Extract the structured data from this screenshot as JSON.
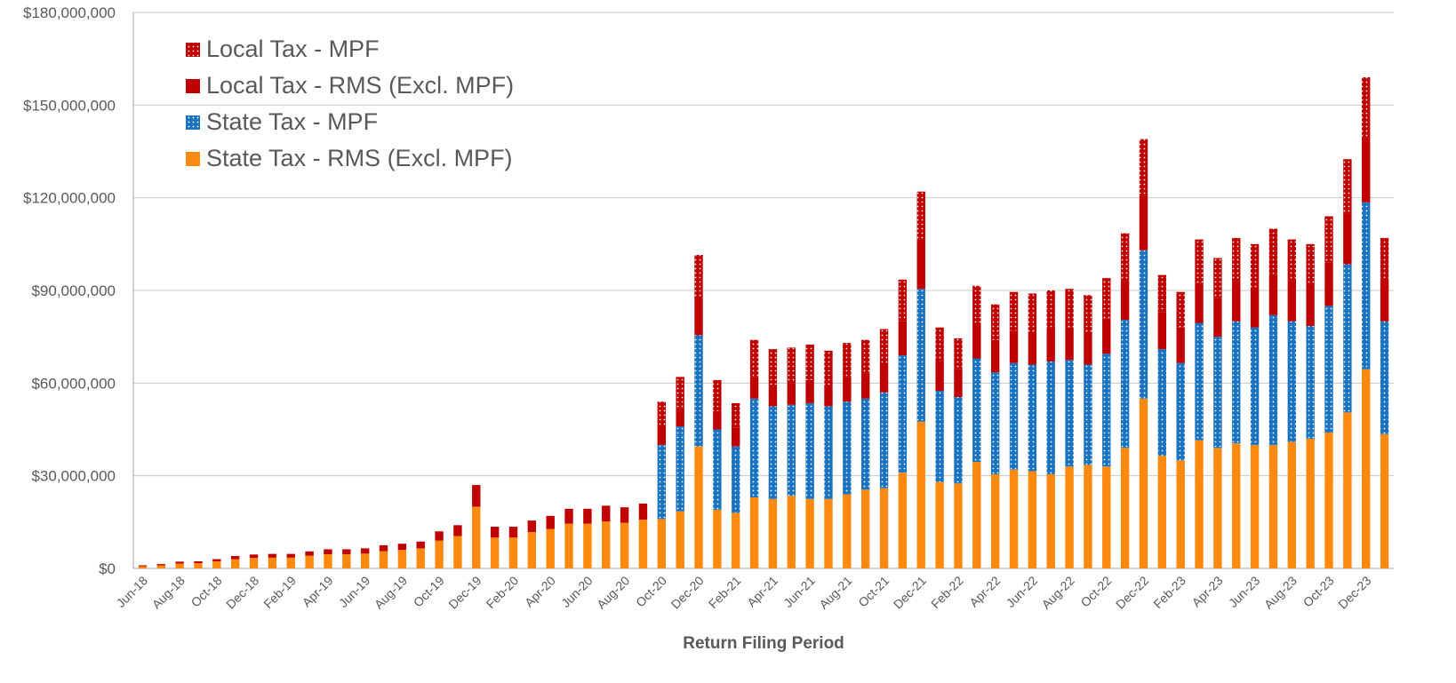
{
  "chart_data": {
    "type": "stacked_bar",
    "x_label": "Return Filing Period",
    "categories": [
      "Jun-18",
      null,
      "Aug-18",
      null,
      "Oct-18",
      null,
      "Dec-18",
      null,
      "Feb-19",
      null,
      "Apr-19",
      null,
      "Jun-19",
      null,
      "Aug-19",
      null,
      "Oct-19",
      null,
      "Dec-19",
      null,
      "Feb-20",
      null,
      "Apr-20",
      null,
      "Jun-20",
      null,
      "Aug-20",
      null,
      "Oct-20",
      null,
      "Dec-20",
      null,
      "Feb-21",
      null,
      "Apr-21",
      null,
      "Jun-21",
      null,
      "Aug-21",
      null,
      "Oct-21",
      null,
      "Dec-21",
      null,
      "Feb-22",
      null,
      "Apr-22",
      null,
      "Jun-22",
      null,
      "Aug-22",
      null,
      "Oct-22",
      null,
      "Dec-22",
      null,
      "Feb-23",
      null,
      "Apr-23",
      null,
      "Jun-23",
      null,
      "Aug-23",
      null,
      "Oct-23",
      null,
      "Dec-23",
      null
    ],
    "series": [
      {
        "name": "State Tax - RMS (Excl. MPF)",
        "color": "#fd8a0e",
        "values": [
          0.7,
          1.0,
          1.6,
          1.7,
          2.3,
          3.0,
          3.4,
          3.5,
          3.5,
          4.1,
          4.6,
          4.6,
          4.8,
          5.6,
          6.0,
          6.5,
          9.0,
          10.5,
          20,
          10,
          10,
          11.8,
          12.8,
          14.5,
          14.5,
          15.2,
          14.8,
          15.8,
          16,
          18.5,
          39.5,
          19,
          18,
          23,
          22.5,
          23.5,
          22.5,
          22.5,
          24,
          25.5,
          26,
          31,
          47.5,
          28,
          27.5,
          34.5,
          30.5,
          32,
          31.5,
          30.5,
          33,
          33.5,
          33,
          39,
          55,
          36.5,
          35,
          41.5,
          39,
          40.5,
          40,
          40,
          41,
          42,
          44,
          50.5,
          64.5,
          43.5
        ]
      },
      {
        "name": "State Tax - MPF",
        "color": "#1a73c1",
        "pattern": "dots",
        "values": [
          null,
          null,
          null,
          null,
          null,
          null,
          null,
          null,
          null,
          null,
          null,
          null,
          null,
          null,
          null,
          null,
          null,
          null,
          null,
          null,
          null,
          null,
          null,
          null,
          null,
          null,
          null,
          null,
          24,
          27.5,
          36,
          26,
          21.5,
          32,
          30,
          29.5,
          31,
          30,
          30,
          29.5,
          31,
          38,
          43,
          29.5,
          28,
          33.5,
          33,
          34.5,
          34.5,
          36.5,
          34.5,
          32.5,
          36.5,
          41.5,
          48,
          34.5,
          31.5,
          38,
          36,
          39.5,
          38,
          42,
          39,
          36.5,
          41,
          48,
          54,
          36.5
        ]
      },
      {
        "name": "Local Tax - RMS (Excl. MPF)",
        "color": "#c00000",
        "values": [
          0.3,
          0.4,
          0.6,
          0.6,
          0.7,
          1.0,
          1.1,
          1.2,
          1.2,
          1.4,
          1.6,
          1.6,
          1.7,
          1.9,
          2.0,
          2.2,
          3.0,
          3.5,
          7,
          3.5,
          3.5,
          3.7,
          4.2,
          4.8,
          4.8,
          5.1,
          5.0,
          5.2,
          6,
          6,
          12.5,
          6,
          6,
          7,
          7,
          7,
          7.5,
          7,
          8,
          8,
          9,
          11,
          16,
          9.5,
          9,
          11.5,
          10.5,
          10.5,
          10.5,
          10.5,
          10.5,
          10.5,
          11.5,
          12.5,
          17.5,
          12,
          11.5,
          13,
          12.5,
          13,
          13,
          13,
          13,
          13.5,
          14,
          16.5,
          21,
          14
        ]
      },
      {
        "name": "Local Tax - MPF",
        "color": "#c00000",
        "pattern": "dots",
        "values": [
          null,
          null,
          null,
          null,
          null,
          null,
          null,
          null,
          null,
          null,
          null,
          null,
          null,
          null,
          null,
          null,
          null,
          null,
          null,
          null,
          null,
          null,
          null,
          null,
          null,
          null,
          null,
          null,
          8,
          10,
          13.5,
          10,
          8,
          12,
          11.5,
          11.5,
          11.5,
          11,
          11,
          11,
          11.5,
          13.5,
          15.5,
          11,
          10,
          12,
          11.5,
          12.5,
          12.5,
          12.5,
          12.5,
          12,
          13,
          15.5,
          18.5,
          12,
          11.5,
          14,
          13,
          14,
          14,
          15,
          13.5,
          13,
          15,
          17.5,
          19.5,
          13
        ]
      }
    ],
    "ylim": [
      0,
      180000000
    ],
    "value_unit": 1000000,
    "yticks": [
      {
        "value": 0,
        "label": "$0"
      },
      {
        "value": 30000000,
        "label": "$30,000,000"
      },
      {
        "value": 60000000,
        "label": "$60,000,000"
      },
      {
        "value": 90000000,
        "label": "$90,000,000"
      },
      {
        "value": 120000000,
        "label": "$120,000,000"
      },
      {
        "value": 150000000,
        "label": "$150,000,000"
      },
      {
        "value": 180000000,
        "label": "$180,000,000"
      }
    ],
    "grid": true,
    "legend": "upper left"
  }
}
